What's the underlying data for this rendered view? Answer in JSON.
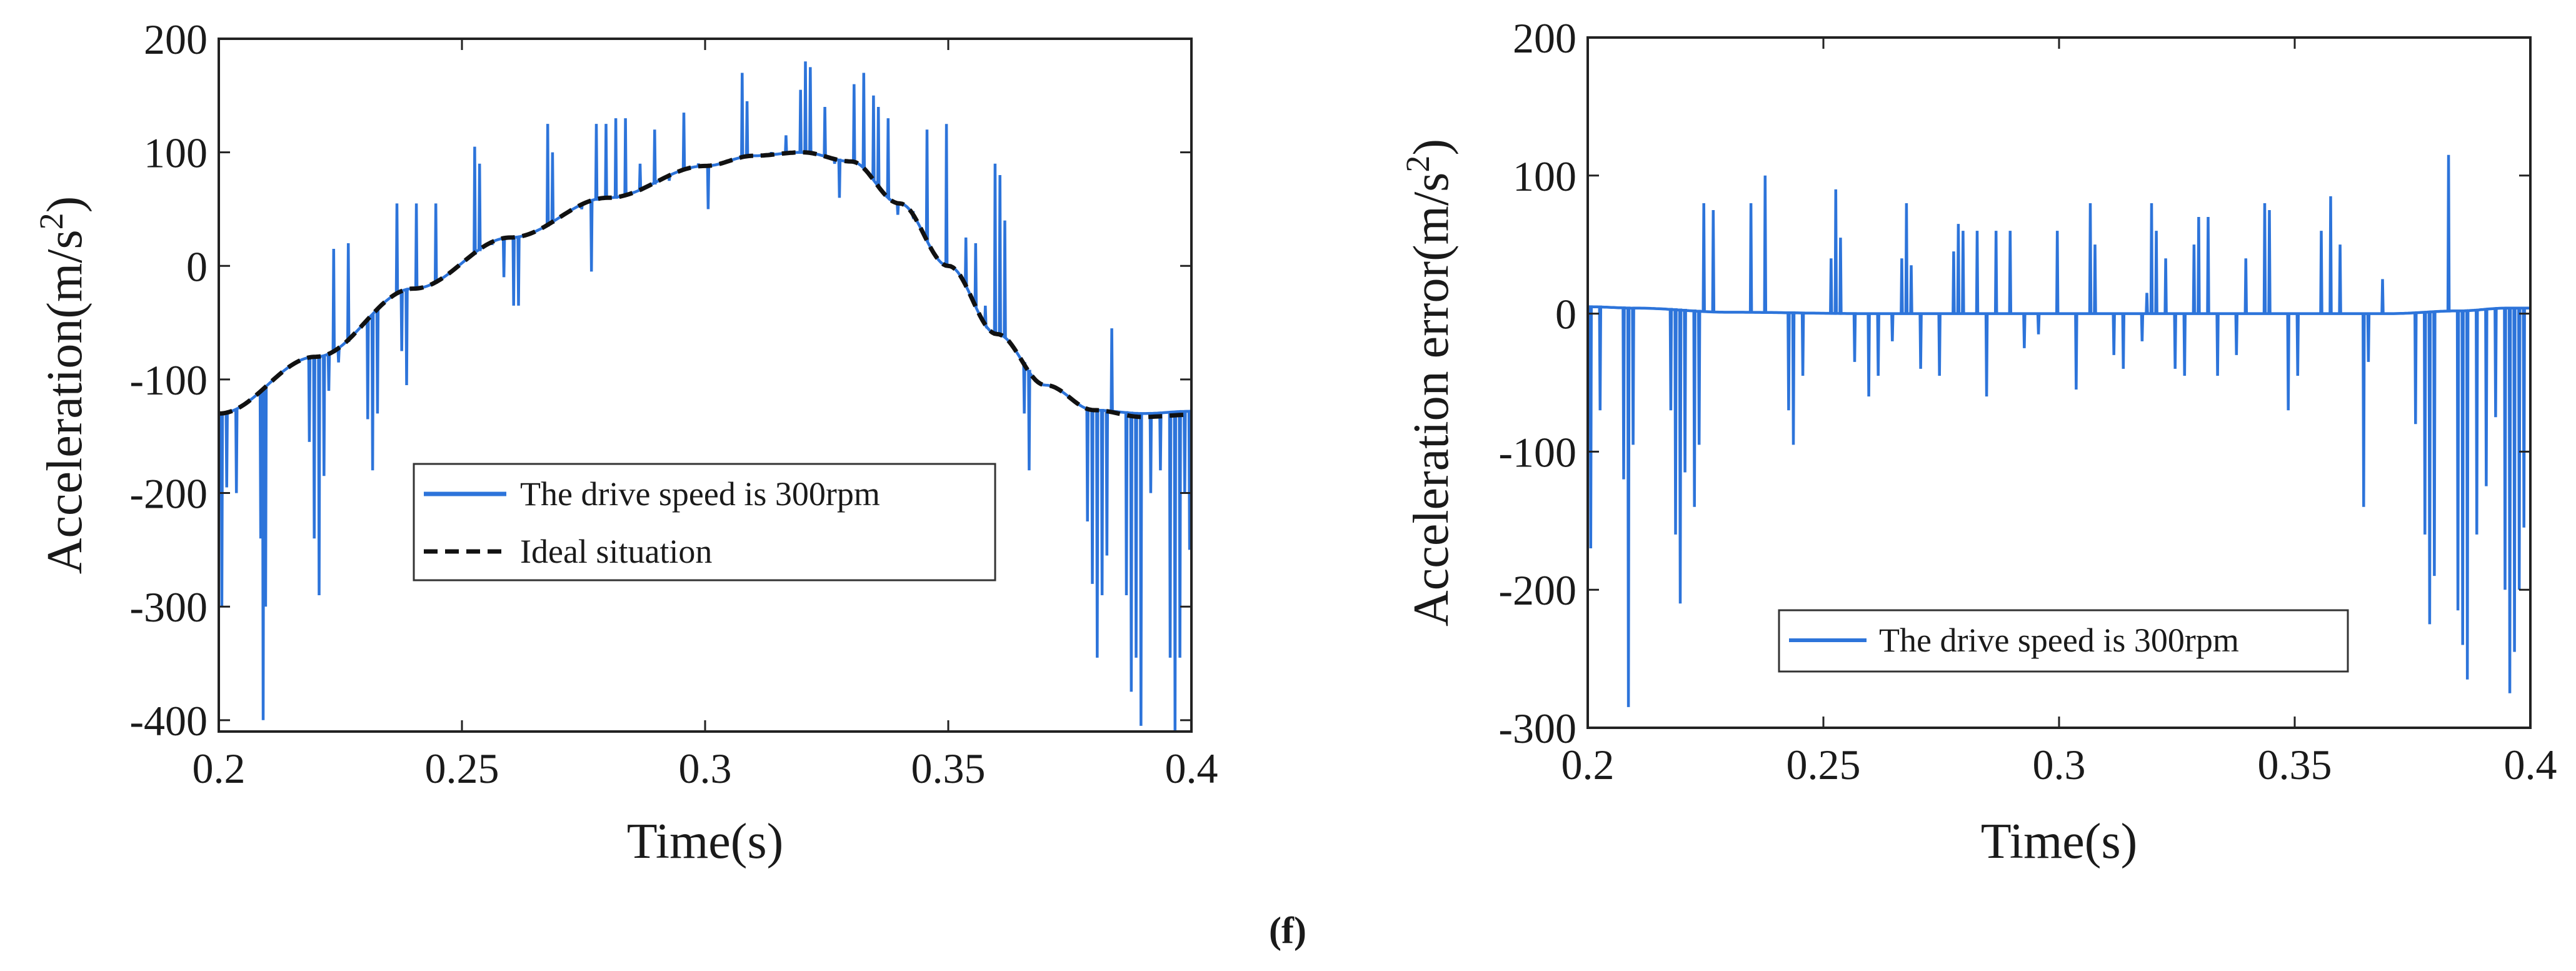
{
  "caption": "(f)",
  "colors": {
    "measured": "#2d74da",
    "ideal": "#111111",
    "axis": "#222222"
  },
  "chart_data": [
    {
      "id": "left",
      "type": "line",
      "xlabel": "Time(s)",
      "ylabel": "Acceleration(m/s",
      "ylabel_sup": "2",
      "ylabel_close": ")",
      "xlim": [
        0.2,
        0.4
      ],
      "ylim": [
        -410,
        200
      ],
      "xticks": [
        0.2,
        0.25,
        0.3,
        0.35,
        0.4
      ],
      "xtick_labels": [
        "0.2",
        "0.25",
        "0.3",
        "0.35",
        "0.4"
      ],
      "yticks": [
        -400,
        -300,
        -200,
        -100,
        0,
        100,
        200
      ],
      "ytick_labels": [
        "-400",
        "-300",
        "-200",
        "-100",
        "0",
        "100",
        "200"
      ],
      "legend": {
        "placement": "center-bottom",
        "entries": [
          "The drive speed is 300rpm",
          "Ideal situation"
        ]
      },
      "series": [
        {
          "name": "The drive speed is 300rpm",
          "style": "solid",
          "color": "#2d74da",
          "baseline_x": [
            0.2,
            0.22,
            0.24,
            0.26,
            0.28,
            0.3,
            0.31,
            0.32,
            0.33,
            0.34,
            0.35,
            0.36,
            0.37,
            0.38,
            0.39,
            0.4
          ],
          "baseline_y": [
            -130,
            -80,
            -20,
            25,
            60,
            88,
            97,
            100,
            92,
            55,
            0,
            -60,
            -105,
            -127,
            -130,
            -128
          ],
          "spikes": [
            [
              0.2005,
              -300
            ],
            [
              0.2015,
              -195
            ],
            [
              0.2035,
              -200
            ],
            [
              0.2085,
              -240
            ],
            [
              0.209,
              -400
            ],
            [
              0.2095,
              -300
            ],
            [
              0.2185,
              -155
            ],
            [
              0.2195,
              -240
            ],
            [
              0.2205,
              -290
            ],
            [
              0.2215,
              -185
            ],
            [
              0.2225,
              -110
            ],
            [
              0.2235,
              15
            ],
            [
              0.2245,
              -85
            ],
            [
              0.2265,
              20
            ],
            [
              0.2305,
              -135
            ],
            [
              0.2315,
              -180
            ],
            [
              0.2325,
              -130
            ],
            [
              0.2365,
              55
            ],
            [
              0.2375,
              -75
            ],
            [
              0.2385,
              -105
            ],
            [
              0.2405,
              55
            ],
            [
              0.2445,
              55
            ],
            [
              0.2525,
              105
            ],
            [
              0.2535,
              90
            ],
            [
              0.2555,
              20
            ],
            [
              0.2585,
              -10
            ],
            [
              0.2605,
              -35
            ],
            [
              0.2615,
              -35
            ],
            [
              0.2675,
              125
            ],
            [
              0.2685,
              100
            ],
            [
              0.2745,
              50
            ],
            [
              0.2765,
              -5
            ],
            [
              0.2775,
              125
            ],
            [
              0.2795,
              125
            ],
            [
              0.2815,
              130
            ],
            [
              0.2835,
              130
            ],
            [
              0.2865,
              90
            ],
            [
              0.2895,
              120
            ],
            [
              0.2925,
              75
            ],
            [
              0.2955,
              135
            ],
            [
              0.2985,
              90
            ],
            [
              0.3005,
              50
            ],
            [
              0.3075,
              170
            ],
            [
              0.3085,
              145
            ],
            [
              0.3135,
              100
            ],
            [
              0.3165,
              115
            ],
            [
              0.3195,
              155
            ],
            [
              0.3205,
              180
            ],
            [
              0.3215,
              175
            ],
            [
              0.3245,
              140
            ],
            [
              0.3265,
              90
            ],
            [
              0.3275,
              60
            ],
            [
              0.3305,
              160
            ],
            [
              0.3325,
              170
            ],
            [
              0.3345,
              150
            ],
            [
              0.3355,
              140
            ],
            [
              0.3375,
              130
            ],
            [
              0.3395,
              45
            ],
            [
              0.3425,
              45
            ],
            [
              0.3455,
              120
            ],
            [
              0.3495,
              125
            ],
            [
              0.3535,
              25
            ],
            [
              0.3555,
              20
            ],
            [
              0.3575,
              -35
            ],
            [
              0.3595,
              90
            ],
            [
              0.3605,
              80
            ],
            [
              0.3615,
              40
            ],
            [
              0.3655,
              -130
            ],
            [
              0.3665,
              -180
            ],
            [
              0.3785,
              -225
            ],
            [
              0.3795,
              -280
            ],
            [
              0.3805,
              -345
            ],
            [
              0.3815,
              -290
            ],
            [
              0.3825,
              -255
            ],
            [
              0.3835,
              -55
            ],
            [
              0.3865,
              -290
            ],
            [
              0.3875,
              -375
            ],
            [
              0.3885,
              -345
            ],
            [
              0.3895,
              -405
            ],
            [
              0.3915,
              -200
            ],
            [
              0.3935,
              -180
            ],
            [
              0.3955,
              -345
            ],
            [
              0.3965,
              -410
            ],
            [
              0.3975,
              -345
            ],
            [
              0.3985,
              -200
            ],
            [
              0.3995,
              -250
            ]
          ]
        },
        {
          "name": "Ideal situation",
          "style": "dashed",
          "color": "#111111",
          "x": [
            0.2,
            0.22,
            0.24,
            0.26,
            0.28,
            0.3,
            0.31,
            0.32,
            0.33,
            0.34,
            0.35,
            0.36,
            0.37,
            0.38,
            0.39,
            0.4
          ],
          "y": [
            -130,
            -80,
            -20,
            25,
            60,
            88,
            97,
            100,
            92,
            55,
            0,
            -60,
            -105,
            -127,
            -133,
            -131
          ]
        }
      ]
    },
    {
      "id": "right",
      "type": "line",
      "xlabel": "Time(s)",
      "ylabel": "Acceleration error(m/s",
      "ylabel_sup": "2",
      "ylabel_close": ")",
      "xlim": [
        0.2,
        0.4
      ],
      "ylim": [
        -300,
        200
      ],
      "xticks": [
        0.2,
        0.25,
        0.3,
        0.35,
        0.4
      ],
      "xtick_labels": [
        "0.2",
        "0.25",
        "0.3",
        "0.35",
        "0.4"
      ],
      "yticks": [
        -300,
        -200,
        -100,
        0,
        100,
        200
      ],
      "ytick_labels": [
        "-300",
        "-200",
        "-100",
        "0",
        "100",
        "200"
      ],
      "legend": {
        "placement": "center-bottom",
        "entries": [
          "The drive speed is 300rpm"
        ]
      },
      "series": [
        {
          "name": "The drive speed is 300rpm",
          "style": "solid",
          "color": "#2d74da",
          "baseline_x": [
            0.2,
            0.21,
            0.23,
            0.26,
            0.3,
            0.34,
            0.37,
            0.385,
            0.395,
            0.4
          ],
          "baseline_y": [
            5,
            4,
            1,
            0,
            0,
            0,
            0,
            2,
            4,
            4
          ],
          "spikes": [
            [
              0.2005,
              -170
            ],
            [
              0.2025,
              -70
            ],
            [
              0.2075,
              -120
            ],
            [
              0.2085,
              -285
            ],
            [
              0.2095,
              -95
            ],
            [
              0.2175,
              -70
            ],
            [
              0.2185,
              -160
            ],
            [
              0.2195,
              -210
            ],
            [
              0.2205,
              -115
            ],
            [
              0.2225,
              -140
            ],
            [
              0.2235,
              -95
            ],
            [
              0.2245,
              80
            ],
            [
              0.2265,
              75
            ],
            [
              0.2345,
              80
            ],
            [
              0.2375,
              100
            ],
            [
              0.2425,
              -70
            ],
            [
              0.2435,
              -95
            ],
            [
              0.2455,
              -45
            ],
            [
              0.2515,
              40
            ],
            [
              0.2525,
              90
            ],
            [
              0.2535,
              55
            ],
            [
              0.2565,
              -35
            ],
            [
              0.2595,
              -60
            ],
            [
              0.2615,
              -45
            ],
            [
              0.2645,
              -20
            ],
            [
              0.2665,
              40
            ],
            [
              0.2675,
              80
            ],
            [
              0.2685,
              35
            ],
            [
              0.2705,
              -40
            ],
            [
              0.2745,
              -45
            ],
            [
              0.2775,
              45
            ],
            [
              0.2785,
              65
            ],
            [
              0.2795,
              60
            ],
            [
              0.2825,
              60
            ],
            [
              0.2845,
              -60
            ],
            [
              0.2865,
              60
            ],
            [
              0.2895,
              60
            ],
            [
              0.2925,
              -25
            ],
            [
              0.2955,
              -15
            ],
            [
              0.2995,
              60
            ],
            [
              0.3035,
              -55
            ],
            [
              0.3065,
              80
            ],
            [
              0.3075,
              50
            ],
            [
              0.3115,
              -30
            ],
            [
              0.3135,
              -40
            ],
            [
              0.3175,
              -20
            ],
            [
              0.3185,
              15
            ],
            [
              0.3195,
              80
            ],
            [
              0.3205,
              60
            ],
            [
              0.3225,
              40
            ],
            [
              0.3245,
              -40
            ],
            [
              0.3265,
              -45
            ],
            [
              0.3285,
              50
            ],
            [
              0.3295,
              70
            ],
            [
              0.3315,
              70
            ],
            [
              0.3335,
              -45
            ],
            [
              0.3375,
              -30
            ],
            [
              0.3395,
              40
            ],
            [
              0.3435,
              80
            ],
            [
              0.3445,
              75
            ],
            [
              0.3485,
              -70
            ],
            [
              0.3505,
              -45
            ],
            [
              0.3555,
              60
            ],
            [
              0.3575,
              85
            ],
            [
              0.3595,
              50
            ],
            [
              0.3645,
              -140
            ],
            [
              0.3655,
              -35
            ],
            [
              0.3685,
              25
            ],
            [
              0.3755,
              -80
            ],
            [
              0.3775,
              -160
            ],
            [
              0.3785,
              -225
            ],
            [
              0.3795,
              -190
            ],
            [
              0.3825,
              115
            ],
            [
              0.3845,
              -215
            ],
            [
              0.3855,
              -240
            ],
            [
              0.3865,
              -265
            ],
            [
              0.3885,
              -160
            ],
            [
              0.3905,
              -125
            ],
            [
              0.3925,
              -75
            ],
            [
              0.3945,
              -200
            ],
            [
              0.3955,
              -275
            ],
            [
              0.3965,
              -245
            ],
            [
              0.3975,
              -200
            ],
            [
              0.3985,
              -155
            ]
          ]
        }
      ]
    }
  ]
}
